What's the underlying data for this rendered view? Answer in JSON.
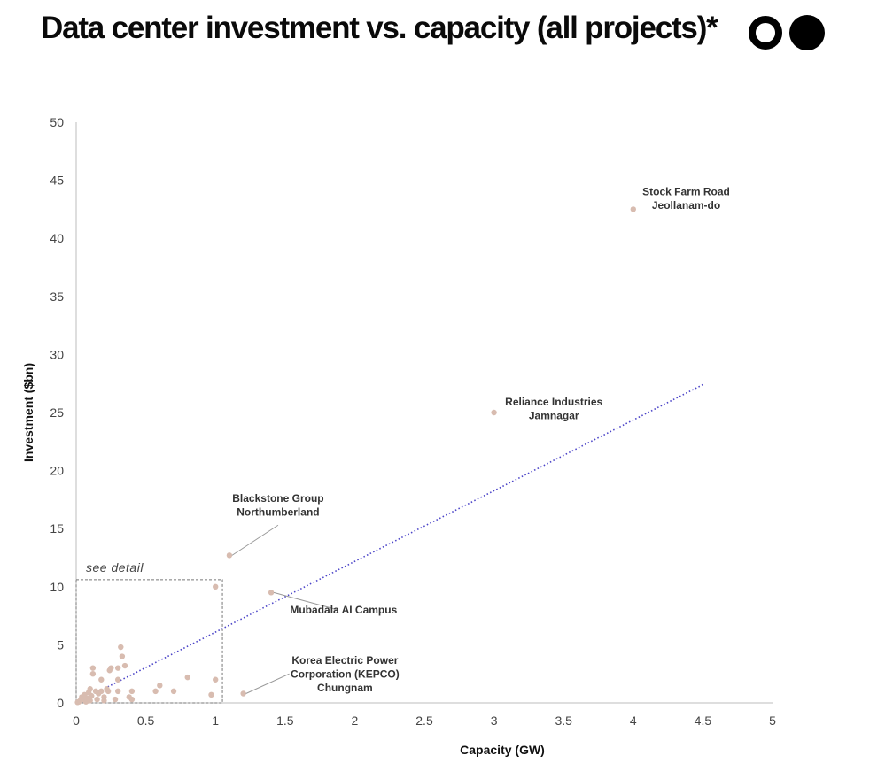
{
  "title": "Data center investment vs. capacity (all projects)*",
  "colors": {
    "point": "#d8bcb0",
    "trendline": "#4b44c8",
    "axis": "#bdbdbd",
    "text": "#111111"
  },
  "chart_data": {
    "type": "scatter",
    "title": "Data center investment vs. capacity (all projects)*",
    "xlabel": "Capacity (GW)",
    "ylabel": "Investment ($bn)",
    "xlim": [
      0,
      5
    ],
    "ylim": [
      0,
      50
    ],
    "xticks": [
      "0",
      "0.5",
      "1",
      "1.5",
      "2",
      "2.5",
      "3",
      "3.5",
      "4",
      "4.5",
      "5"
    ],
    "yticks": [
      "0",
      "5",
      "10",
      "15",
      "20",
      "25",
      "30",
      "35",
      "40",
      "45",
      "50"
    ],
    "grid": false,
    "points": [
      [
        4.0,
        42.5
      ],
      [
        3.0,
        25.0
      ],
      [
        1.1,
        12.7
      ],
      [
        1.4,
        9.5
      ],
      [
        1.2,
        0.8
      ],
      [
        1.0,
        10.0
      ],
      [
        1.0,
        2.0
      ],
      [
        0.97,
        0.7
      ],
      [
        0.8,
        2.2
      ],
      [
        0.7,
        1.0
      ],
      [
        0.6,
        1.5
      ],
      [
        0.57,
        1.0
      ],
      [
        0.4,
        1.0
      ],
      [
        0.4,
        0.3
      ],
      [
        0.38,
        0.5
      ],
      [
        0.35,
        3.2
      ],
      [
        0.33,
        4.0
      ],
      [
        0.32,
        4.8
      ],
      [
        0.3,
        3.0
      ],
      [
        0.3,
        1.0
      ],
      [
        0.3,
        2.0
      ],
      [
        0.28,
        0.3
      ],
      [
        0.25,
        3.0
      ],
      [
        0.24,
        2.8
      ],
      [
        0.23,
        1.0
      ],
      [
        0.22,
        1.2
      ],
      [
        0.2,
        0.5
      ],
      [
        0.2,
        0.2
      ],
      [
        0.18,
        1.0
      ],
      [
        0.18,
        2.0
      ],
      [
        0.16,
        0.8
      ],
      [
        0.15,
        0.3
      ],
      [
        0.14,
        1.0
      ],
      [
        0.12,
        3.0
      ],
      [
        0.12,
        2.5
      ],
      [
        0.11,
        0.6
      ],
      [
        0.1,
        1.2
      ],
      [
        0.1,
        0.2
      ],
      [
        0.09,
        0.9
      ],
      [
        0.08,
        0.4
      ],
      [
        0.07,
        0.1
      ],
      [
        0.06,
        0.7
      ],
      [
        0.05,
        0.3
      ],
      [
        0.04,
        0.5
      ],
      [
        0.03,
        0.2
      ],
      [
        0.02,
        0.1
      ],
      [
        0.01,
        0.05
      ]
    ],
    "trendline": {
      "style": "dotted",
      "from": [
        0,
        0
      ],
      "to": [
        4.5,
        27.4
      ]
    },
    "detail_box": {
      "label": "see detail",
      "x_range": [
        0,
        1.05
      ],
      "y_range": [
        0,
        10.6
      ]
    },
    "annotations": [
      {
        "point": [
          4.0,
          42.5
        ],
        "lines": [
          "Stock Farm Road",
          "Jeollanam-do"
        ],
        "text_at": [
          4.38,
          43.7
        ],
        "leader": false
      },
      {
        "point": [
          3.0,
          25.0
        ],
        "lines": [
          "Reliance Industries",
          "Jamnagar"
        ],
        "text_at": [
          3.43,
          25.6
        ],
        "leader": false
      },
      {
        "point": [
          1.1,
          12.7
        ],
        "lines": [
          "Blackstone Group",
          "Northumberland"
        ],
        "text_at": [
          1.45,
          17.3
        ],
        "leader": true,
        "leader_to": [
          1.45,
          15.3
        ]
      },
      {
        "point": [
          1.4,
          9.5
        ],
        "lines": [
          "Mubadala AI Campus"
        ],
        "text_at": [
          1.92,
          7.7
        ],
        "leader": true,
        "leader_to": [
          1.88,
          8.0
        ]
      },
      {
        "point": [
          1.2,
          0.8
        ],
        "lines": [
          "Korea Electric Power",
          "Corporation (KEPCO)",
          "Chungnam"
        ],
        "text_at": [
          1.93,
          3.35
        ],
        "leader": true,
        "leader_to": [
          1.53,
          2.5
        ]
      }
    ]
  }
}
